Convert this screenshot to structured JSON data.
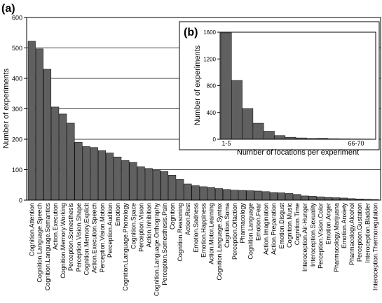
{
  "chart_data": [
    {
      "panel_label": "(a)",
      "type": "bar",
      "ylabel": "Number of experiments",
      "ylim": [
        0,
        600
      ],
      "yticks": [
        0,
        100,
        200,
        300,
        400,
        500,
        600
      ],
      "grid": "horizontal",
      "bar_color": "#606060",
      "categories": [
        "Cognition.Attention",
        "Cognition.Language.Speech",
        "Cognition.Language.Semantics",
        "Action.Execution",
        "Cognition.Memory.Working",
        "Perception.Somesthesis",
        "Perception.Vision.Shape",
        "Cognition.Memory.Explicit",
        "Action.Execution.Speech",
        "Perception.Vision.Motion",
        "Perception.Audition",
        "Emotion",
        "Cognition.Language.Phonology",
        "Cognition.Space",
        "Perception.Vision",
        "Action.Inhibition",
        "Cognition.Language.Orthography",
        "Perception.Somesthesis.Pain",
        "Cognition",
        "Cognition.Reasoning",
        "Action.Rest",
        "Emotion.Sadness",
        "Emotion.Happiness",
        "Action.Motor.Learning",
        "Cognition.Language.Syntax",
        "Cognition.Soma",
        "Perception.Olfaction",
        "Pharmacology",
        "Cognition.Language",
        "Emotion.Fear",
        "Action.Imagination",
        "Action.Preparation",
        "Emotion.Disgust",
        "Cognition.Music",
        "Cognition.Time",
        "Interoception.Air-Hunger",
        "Interoception.Sexuality",
        "Perception.Vision.Color",
        "Emotion.Anger",
        "Pharmacology.Marijuana",
        "Emotion.Anxiety",
        "Pharmacology.Alcohol",
        "Perception.Gustation",
        "Interoception.Bladder",
        "Interoception.Thermoregulation"
      ],
      "values": [
        522,
        497,
        430,
        306,
        283,
        253,
        190,
        176,
        173,
        163,
        155,
        142,
        130,
        124,
        110,
        104,
        99,
        95,
        82,
        68,
        53,
        48,
        44,
        42,
        38,
        35,
        33,
        32,
        31,
        30,
        28,
        25,
        24,
        22,
        19,
        14,
        13,
        11,
        9,
        8,
        7,
        5,
        4,
        3,
        2
      ]
    },
    {
      "panel_label": "(b)",
      "type": "bar",
      "ylabel": "Number of experiments",
      "xlabel": "Number of locations per experiment",
      "ylim": [
        0,
        1600
      ],
      "yticks": [
        0,
        400,
        800,
        1200,
        1600
      ],
      "xtick_labels": [
        "1-5",
        "66-70"
      ],
      "bar_color": "#606060",
      "values": [
        1590,
        880,
        460,
        240,
        120,
        55,
        30,
        20,
        12,
        15,
        8,
        6,
        5,
        4
      ]
    }
  ]
}
